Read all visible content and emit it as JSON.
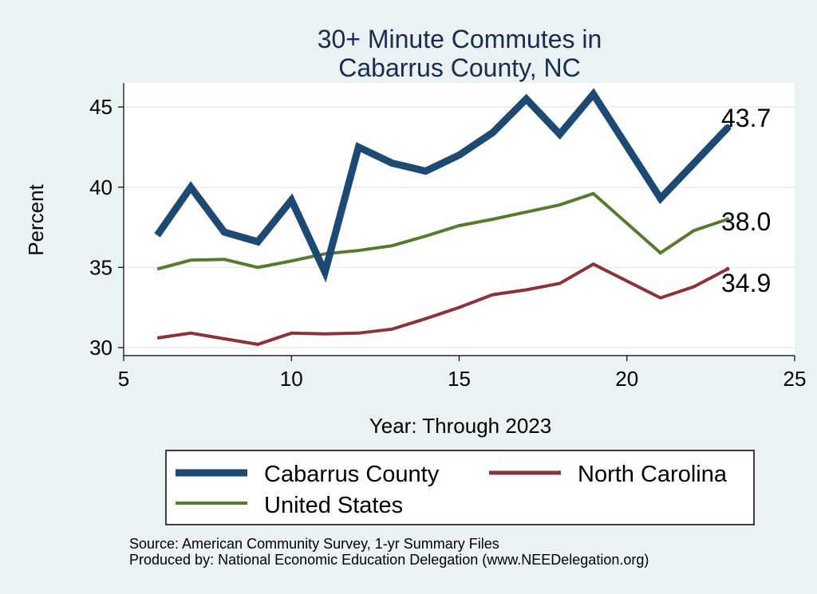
{
  "chart_data": {
    "type": "line",
    "title_lines": [
      "30+ Minute Commutes in",
      "Cabarrus County, NC"
    ],
    "xlabel": "Year: Through 2023",
    "ylabel": "Percent",
    "xlim": [
      5,
      25
    ],
    "ylim": [
      29.5,
      46.5
    ],
    "xticks": [
      5,
      10,
      15,
      20,
      25
    ],
    "yticks": [
      30,
      35,
      40,
      45
    ],
    "grid": true,
    "legend_position": "bottom",
    "series": [
      {
        "name": "Cabarrus County",
        "color": "#1c4a72",
        "x": [
          6,
          7,
          8,
          9,
          10,
          11,
          12,
          13,
          14,
          15,
          16,
          17,
          18,
          19,
          21,
          22,
          23
        ],
        "y": [
          37.0,
          40.0,
          37.2,
          36.6,
          39.2,
          34.7,
          42.5,
          41.5,
          41.0,
          42.0,
          43.4,
          45.5,
          43.3,
          45.8,
          39.3,
          41.5,
          43.7
        ],
        "end_label": "43.7"
      },
      {
        "name": "North Carolina",
        "color": "#8c3239",
        "x": [
          6,
          7,
          8,
          9,
          10,
          11,
          12,
          13,
          14,
          15,
          16,
          17,
          18,
          19,
          21,
          22,
          23
        ],
        "y": [
          30.6,
          30.9,
          30.55,
          30.2,
          30.9,
          30.85,
          30.9,
          31.15,
          31.8,
          32.5,
          33.3,
          33.6,
          34.0,
          35.2,
          33.1,
          33.8,
          34.9
        ],
        "end_label": "34.9"
      },
      {
        "name": "United States",
        "color": "#557a30",
        "x": [
          6,
          7,
          8,
          9,
          10,
          11,
          12,
          13,
          14,
          15,
          16,
          17,
          18,
          19,
          21,
          22,
          23
        ],
        "y": [
          34.9,
          35.45,
          35.5,
          35.0,
          35.4,
          35.85,
          36.05,
          36.35,
          36.95,
          37.6,
          38.0,
          38.45,
          38.9,
          39.6,
          35.9,
          37.3,
          38.0
        ],
        "end_label": "38.0"
      }
    ]
  },
  "notes": {
    "source": "Source: American Community Survey, 1-yr Summary Files",
    "produced": "Produced by: National Economic Education Delegation (www.NEEDelegation.org)"
  }
}
